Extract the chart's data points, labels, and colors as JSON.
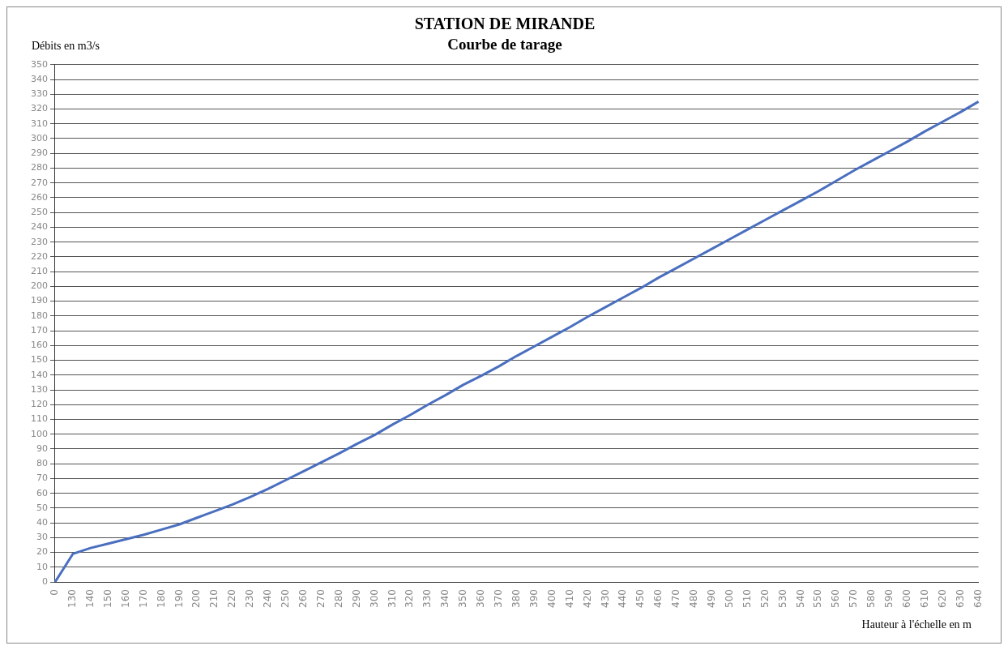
{
  "chart_data": {
    "type": "line",
    "title": "STATION DE MIRANDE",
    "subtitle": "Courbe de tarage",
    "xlabel": "Hauteur à l'échelle en m",
    "ylabel": "Débits en m3/s",
    "categories": [
      "0",
      "130",
      "140",
      "150",
      "160",
      "170",
      "180",
      "190",
      "200",
      "210",
      "220",
      "230",
      "240",
      "250",
      "260",
      "270",
      "280",
      "290",
      "300",
      "310",
      "320",
      "330",
      "340",
      "350",
      "360",
      "370",
      "380",
      "390",
      "400",
      "410",
      "420",
      "430",
      "440",
      "450",
      "460",
      "470",
      "480",
      "490",
      "500",
      "510",
      "520",
      "530",
      "540",
      "550",
      "560",
      "570",
      "580",
      "590",
      "600",
      "610",
      "620",
      "630",
      "640"
    ],
    "series": [
      {
        "color": "#4a6fbf",
        "values": [
          0,
          19,
          23,
          26,
          29,
          32,
          35.5,
          39,
          43.5,
          48,
          52.5,
          57.5,
          63,
          69,
          75,
          81,
          87,
          93.5,
          99.5,
          106.5,
          113,
          120,
          126.5,
          133.5,
          139.5,
          146,
          153,
          159.5,
          166,
          172.5,
          179.5,
          186,
          192.5,
          199,
          206,
          212.5,
          219,
          225.5,
          232,
          238.5,
          245,
          251.5,
          258,
          264.5,
          271.5,
          278.5,
          285,
          291.5,
          298,
          305,
          311.5,
          318,
          325
        ]
      }
    ],
    "ylim": [
      0,
      350
    ],
    "yticks": [
      0,
      10,
      20,
      30,
      40,
      50,
      60,
      70,
      80,
      90,
      100,
      110,
      120,
      130,
      140,
      150,
      160,
      170,
      180,
      190,
      200,
      210,
      220,
      230,
      240,
      250,
      260,
      270,
      280,
      290,
      300,
      310,
      320,
      330,
      340,
      350
    ],
    "grid": "y",
    "legend": false,
    "marker": "none",
    "line_style": "solid"
  }
}
